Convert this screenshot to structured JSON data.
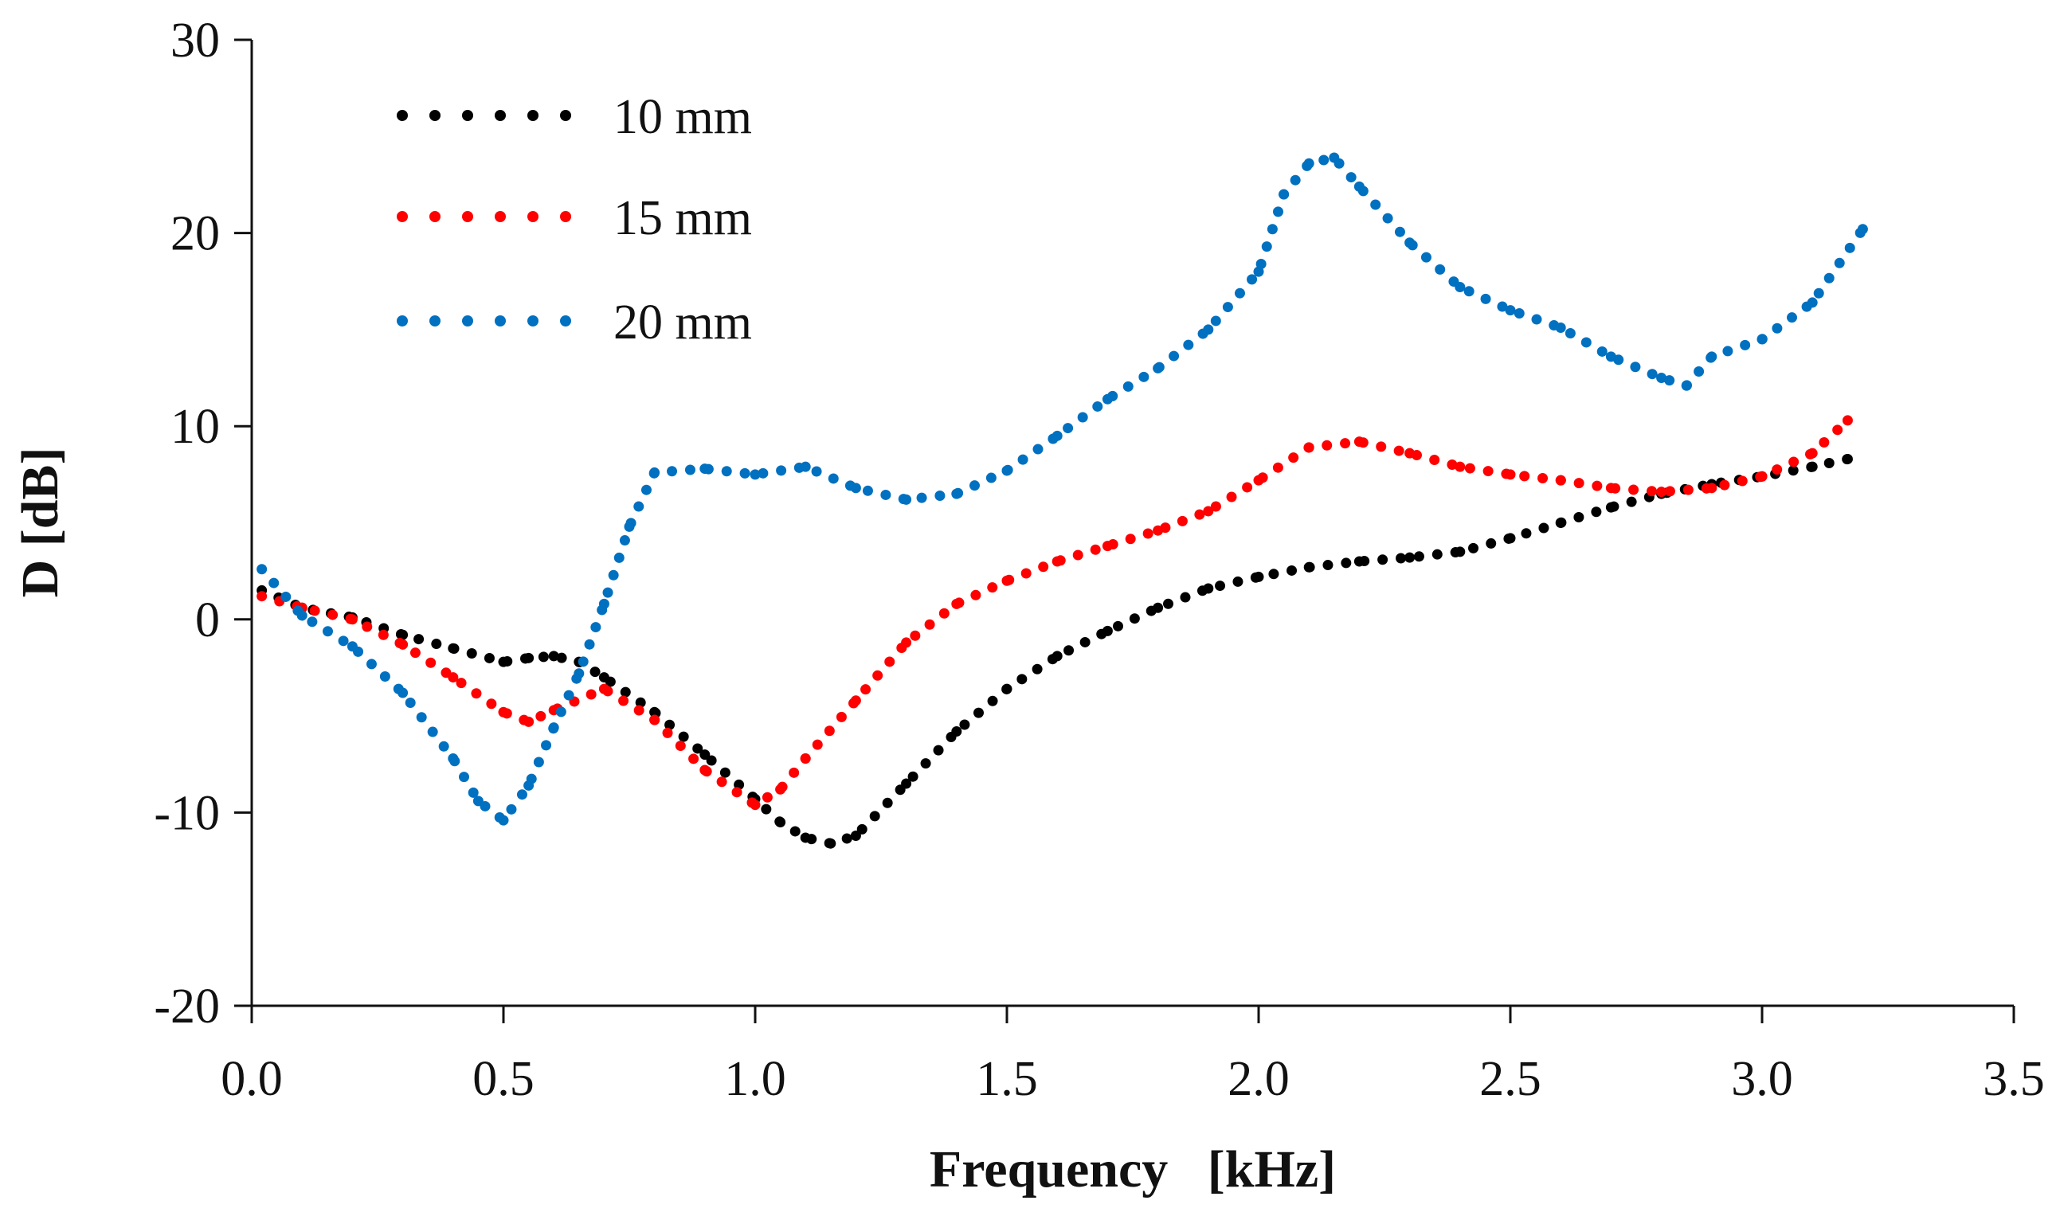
{
  "chart_data": {
    "type": "scatter",
    "title": "",
    "xlabel": "Frequency   [kHz]",
    "ylabel": "D [dB]",
    "xlim": [
      0,
      3.5
    ],
    "ylim": [
      -20,
      30
    ],
    "x_ticks": [
      "0.0",
      "0.5",
      "1.0",
      "1.5",
      "2.0",
      "2.5",
      "3.0",
      "3.5"
    ],
    "y_ticks": [
      "30",
      "20",
      "10",
      "0",
      "-10",
      "-20"
    ],
    "grid": false,
    "legend_position": "top-left",
    "series": [
      {
        "name": "10 mm",
        "color": "#000000",
        "x": [
          0.02,
          0.1,
          0.2,
          0.3,
          0.4,
          0.5,
          0.55,
          0.6,
          0.65,
          0.7,
          0.8,
          0.9,
          1.0,
          1.05,
          1.1,
          1.15,
          1.2,
          1.3,
          1.4,
          1.5,
          1.6,
          1.7,
          1.8,
          1.9,
          2.0,
          2.1,
          2.2,
          2.3,
          2.4,
          2.5,
          2.6,
          2.7,
          2.8,
          2.9,
          3.0,
          3.1,
          3.17
        ],
        "y": [
          1.5,
          0.6,
          0.1,
          -0.8,
          -1.5,
          -2.2,
          -2.0,
          -1.9,
          -2.2,
          -3.0,
          -4.8,
          -7.0,
          -9.3,
          -10.5,
          -11.3,
          -11.6,
          -11.2,
          -8.5,
          -5.8,
          -3.6,
          -1.9,
          -0.6,
          0.6,
          1.6,
          2.2,
          2.7,
          3.0,
          3.2,
          3.5,
          4.2,
          5.0,
          5.8,
          6.5,
          7.0,
          7.4,
          7.9,
          8.3
        ]
      },
      {
        "name": "15 mm",
        "color": "#ff0000",
        "x": [
          0.02,
          0.1,
          0.2,
          0.3,
          0.4,
          0.5,
          0.55,
          0.6,
          0.7,
          0.8,
          0.9,
          1.0,
          1.05,
          1.1,
          1.2,
          1.3,
          1.4,
          1.5,
          1.6,
          1.7,
          1.8,
          1.9,
          2.0,
          2.1,
          2.2,
          2.3,
          2.4,
          2.5,
          2.6,
          2.7,
          2.8,
          2.9,
          3.0,
          3.1,
          3.17
        ],
        "y": [
          1.2,
          0.6,
          0.0,
          -1.3,
          -3.0,
          -4.8,
          -5.3,
          -4.7,
          -3.6,
          -5.2,
          -7.8,
          -9.6,
          -8.8,
          -7.2,
          -4.2,
          -1.2,
          0.8,
          2.0,
          3.0,
          3.8,
          4.6,
          5.6,
          7.2,
          8.9,
          9.2,
          8.6,
          7.9,
          7.5,
          7.2,
          6.8,
          6.6,
          6.8,
          7.4,
          8.6,
          10.3
        ]
      },
      {
        "name": "20 mm",
        "color": "#0070c0",
        "x": [
          0.02,
          0.1,
          0.2,
          0.3,
          0.4,
          0.45,
          0.5,
          0.55,
          0.6,
          0.65,
          0.7,
          0.75,
          0.8,
          0.9,
          1.0,
          1.1,
          1.2,
          1.3,
          1.4,
          1.5,
          1.6,
          1.7,
          1.8,
          1.9,
          2.0,
          2.05,
          2.1,
          2.15,
          2.2,
          2.3,
          2.4,
          2.5,
          2.6,
          2.7,
          2.8,
          2.85,
          2.9,
          3.0,
          3.1,
          3.2
        ],
        "y": [
          2.6,
          0.2,
          -1.4,
          -3.8,
          -7.2,
          -9.4,
          -10.4,
          -8.6,
          -5.6,
          -2.8,
          0.8,
          4.8,
          7.6,
          7.8,
          7.5,
          7.9,
          6.8,
          6.2,
          6.5,
          7.7,
          9.5,
          11.4,
          13.0,
          15.0,
          18.0,
          22.0,
          23.6,
          23.9,
          22.4,
          19.5,
          17.2,
          16.0,
          15.1,
          13.6,
          12.5,
          12.1,
          13.6,
          14.5,
          16.4,
          20.2
        ]
      }
    ]
  }
}
